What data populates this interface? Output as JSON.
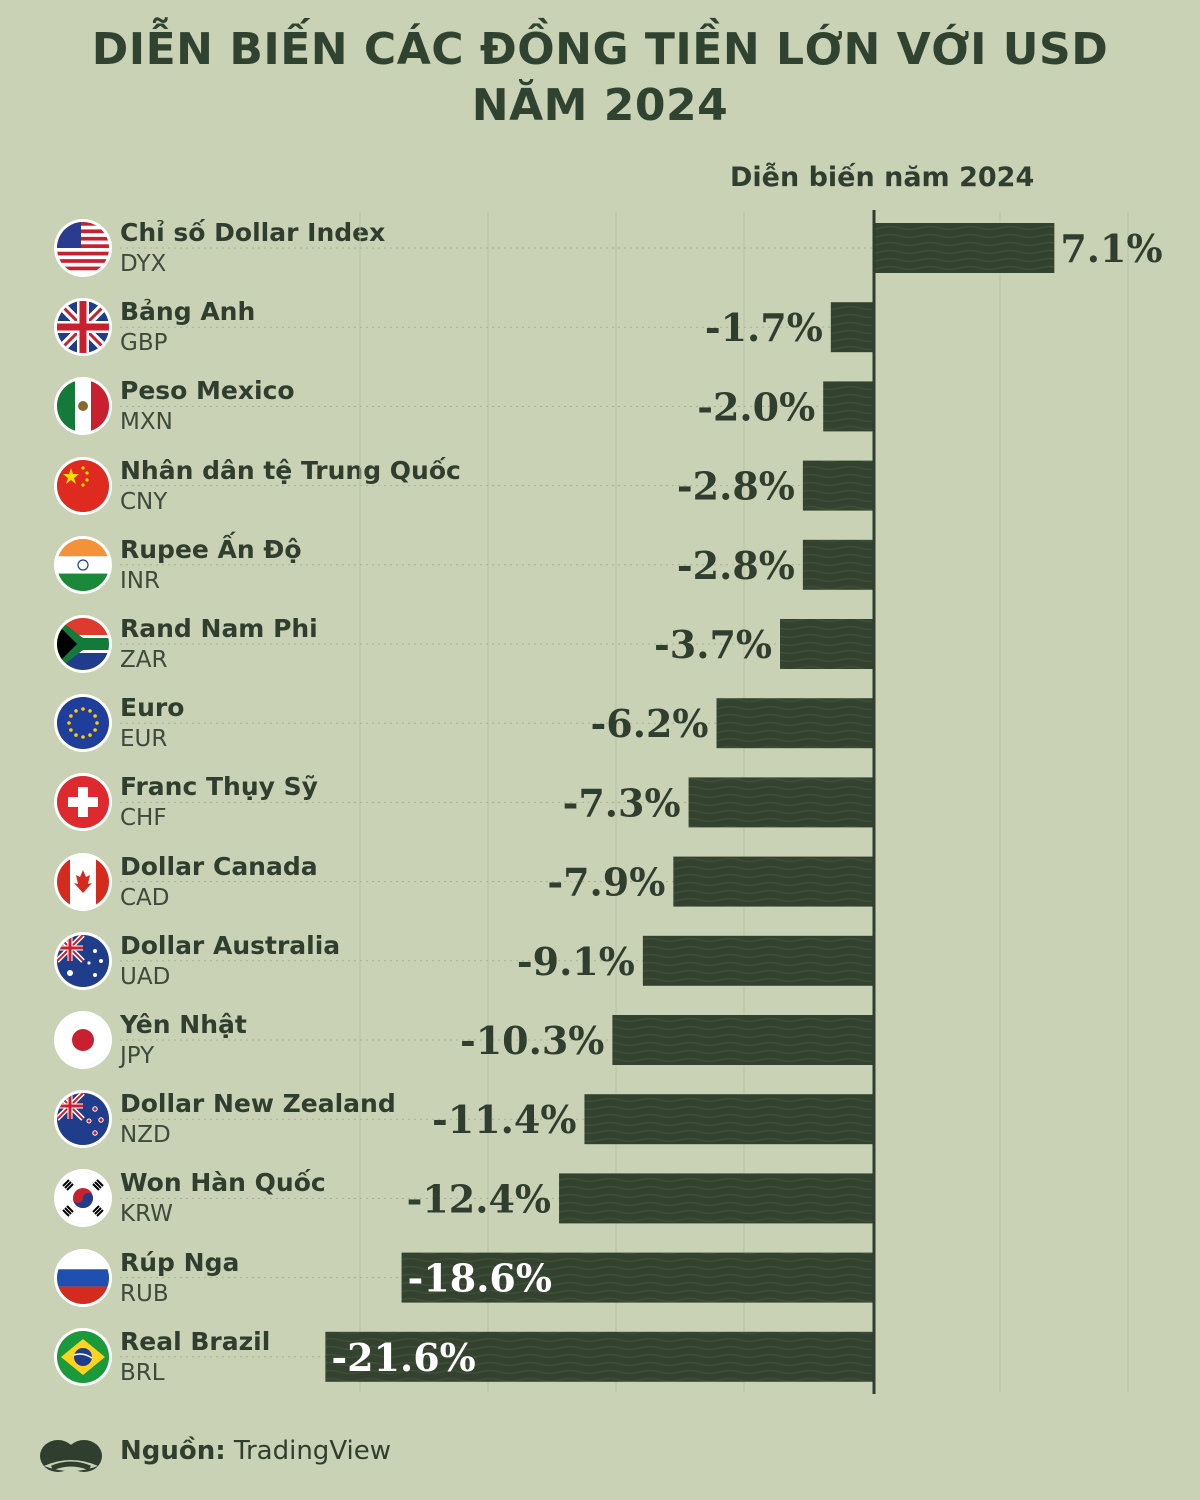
{
  "title": {
    "line1": "DIỄN BIẾN CÁC ĐỒNG TIỀN LỚN VỚI USD",
    "line2": "NĂM 2024"
  },
  "column_header": "Diễn biến năm 2024",
  "footer": {
    "source_label": "Nguồn:",
    "source_value": "TradingView"
  },
  "colors": {
    "background": "#c9d2b4",
    "bar": "#34432f",
    "text": "#2f3e2e"
  },
  "chart_data": {
    "type": "bar",
    "orientation": "horizontal",
    "title": "DIỄN BIẾN CÁC ĐỒNG TIỀN LỚN VỚI USD NĂM 2024",
    "series_label": "Diễn biến năm 2024",
    "unit": "%",
    "xlim": [
      -21.6,
      7.1
    ],
    "grid": true,
    "rows": [
      {
        "name": "Chỉ số Dollar Index",
        "code": "DYX",
        "value": 7.1,
        "label": "7.1%",
        "flag": "us-flag-icon"
      },
      {
        "name": "Bảng Anh",
        "code": "GBP",
        "value": -1.7,
        "label": "-1.7%",
        "flag": "uk-flag-icon"
      },
      {
        "name": "Peso Mexico",
        "code": "MXN",
        "value": -2.0,
        "label": "-2.0%",
        "flag": "mexico-flag-icon"
      },
      {
        "name": "Nhân dân tệ Trung Quốc",
        "code": "CNY",
        "value": -2.8,
        "label": "-2.8%",
        "flag": "china-flag-icon"
      },
      {
        "name": "Rupee Ấn Độ",
        "code": "INR",
        "value": -2.8,
        "label": "-2.8%",
        "flag": "india-flag-icon"
      },
      {
        "name": "Rand Nam Phi",
        "code": "ZAR",
        "value": -3.7,
        "label": "-3.7%",
        "flag": "south-africa-flag-icon"
      },
      {
        "name": "Euro",
        "code": "EUR",
        "value": -6.2,
        "label": "-6.2%",
        "flag": "eu-flag-icon"
      },
      {
        "name": "Franc Thụy Sỹ",
        "code": "CHF",
        "value": -7.3,
        "label": "-7.3%",
        "flag": "switzerland-flag-icon"
      },
      {
        "name": "Dollar Canada",
        "code": "CAD",
        "value": -7.9,
        "label": "-7.9%",
        "flag": "canada-flag-icon"
      },
      {
        "name": "Dollar Australia",
        "code": "UAD",
        "value": -9.1,
        "label": "-9.1%",
        "flag": "australia-flag-icon"
      },
      {
        "name": "Yên Nhật",
        "code": "JPY",
        "value": -10.3,
        "label": "-10.3%",
        "flag": "japan-flag-icon"
      },
      {
        "name": "Dollar New Zealand",
        "code": "NZD",
        "value": -11.4,
        "label": "-11.4%",
        "flag": "new-zealand-flag-icon"
      },
      {
        "name": "Won Hàn Quốc",
        "code": "KRW",
        "value": -12.4,
        "label": "-12.4%",
        "flag": "korea-flag-icon"
      },
      {
        "name": "Rúp Nga",
        "code": "RUB",
        "value": -18.6,
        "label": "-18.6%",
        "flag": "russia-flag-icon"
      },
      {
        "name": "Real Brazil",
        "code": "BRL",
        "value": -21.6,
        "label": "-21.6%",
        "flag": "brazil-flag-icon"
      }
    ]
  }
}
